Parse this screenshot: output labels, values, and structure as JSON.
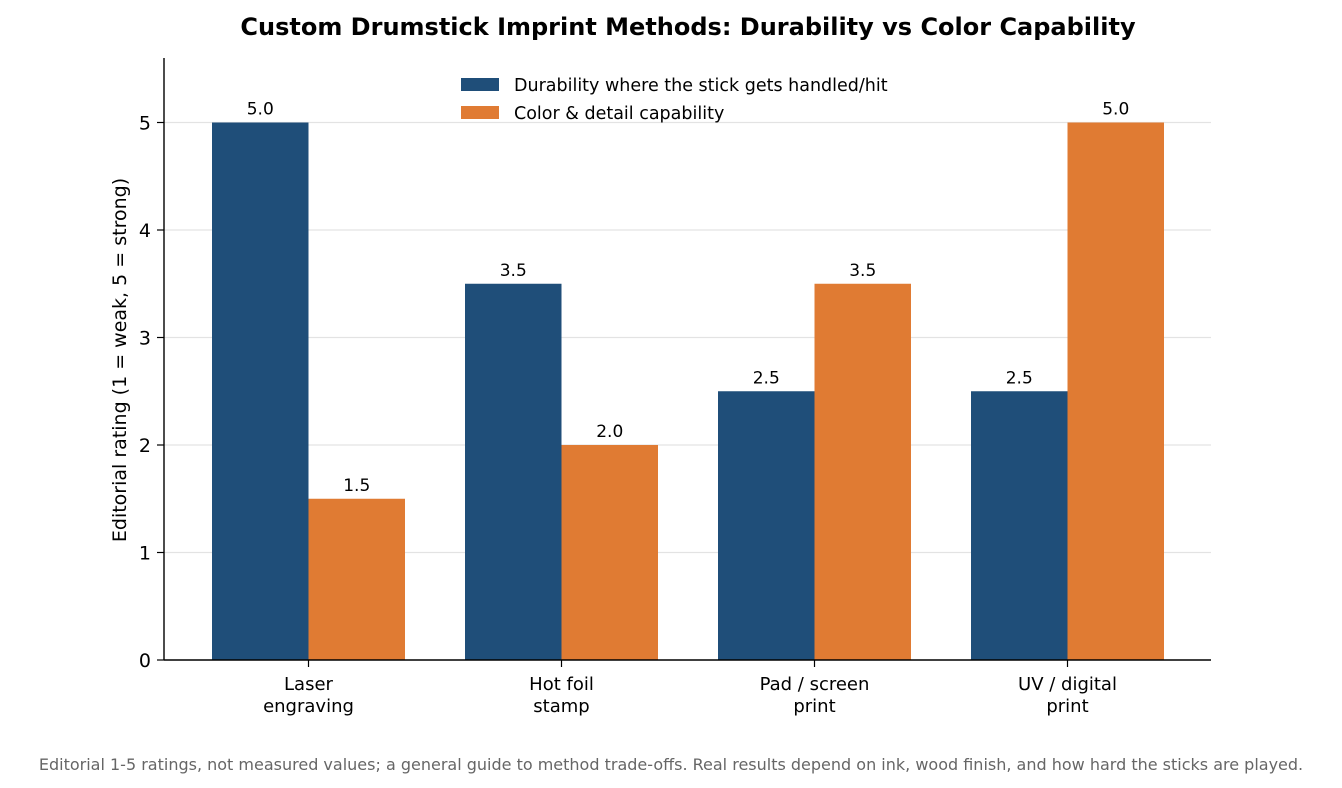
{
  "chart_data": {
    "type": "bar",
    "title": "Custom Drumstick Imprint Methods: Durability vs Color Capability",
    "ylabel": "Editorial rating (1 = weak, 5 = strong)",
    "xlabel": "",
    "categories": [
      [
        "Laser",
        "engraving"
      ],
      [
        "Hot foil",
        "stamp"
      ],
      [
        "Pad / screen",
        "print"
      ],
      [
        "UV / digital",
        "print"
      ]
    ],
    "series": [
      {
        "name": "Durability where the stick gets handled/hit",
        "color": "#1f4e79",
        "values": [
          5.0,
          3.5,
          2.5,
          2.5
        ],
        "labels": [
          "5.0",
          "3.5",
          "2.5",
          "2.5"
        ]
      },
      {
        "name": "Color & detail capability",
        "color": "#e07b33",
        "values": [
          1.5,
          2.0,
          3.5,
          5.0
        ],
        "labels": [
          "1.5",
          "2.0",
          "3.5",
          "5.0"
        ]
      }
    ],
    "ylim": [
      0,
      5.6
    ],
    "yticks": [
      0,
      1,
      2,
      3,
      4,
      5
    ],
    "ytick_labels": [
      "0",
      "1",
      "2",
      "3",
      "4",
      "5"
    ],
    "grid": "horizontal",
    "legend_position": "top-center",
    "footnote": "Editorial 1-5 ratings, not measured values; a general guide to method trade-offs. Real results depend on ink, wood finish, and how hard the sticks are played."
  }
}
